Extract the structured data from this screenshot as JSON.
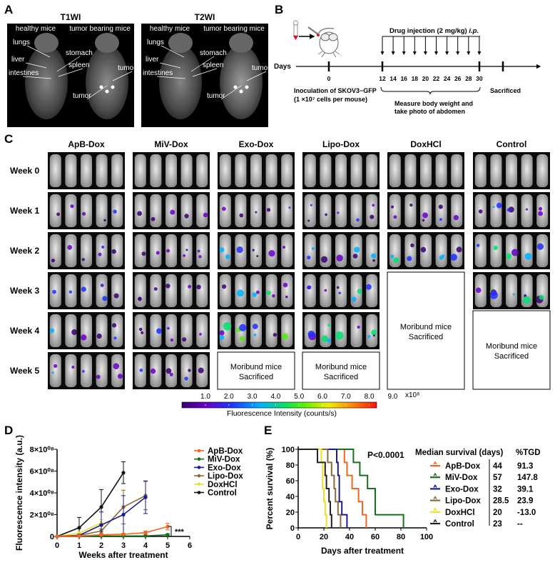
{
  "panel_labels": {
    "a": "A",
    "b": "B",
    "c": "C",
    "d": "D",
    "e": "E"
  },
  "panel_a": {
    "titles": [
      "T1WI",
      "T2WI"
    ],
    "healthy": "healthy mice",
    "tumor_bearing": "tumor bearing mice",
    "organs": {
      "lungs": "lungs",
      "liver": "liver",
      "intestines": "intestines",
      "stomach": "stomach",
      "spleen": "spleen",
      "tumor": "tumor"
    }
  },
  "panel_b": {
    "days_label": "Days",
    "drug_injection": "Drug  injection (2 mg/kg) ",
    "route": "i.p.",
    "ticks": [
      "0",
      "12",
      "14",
      "16",
      "18",
      "20",
      "22",
      "24",
      "26",
      "28",
      "30"
    ],
    "inoculation": [
      "Inoculation of  SKOV3−GFP",
      "(1 ×10⁷ cells per mouse)"
    ],
    "measure": [
      "Measure body weight and",
      "take photo of abdomen"
    ],
    "sacrificed": "Sacrificed"
  },
  "panel_c": {
    "groups": [
      "ApB-Dox",
      "MiV-Dox",
      "Exo-Dox",
      "Lipo-Dox",
      "DoxHCl",
      "Control"
    ],
    "weeks": [
      "Week 0",
      "Week 1",
      "Week 2",
      "Week 3",
      "Week 4",
      "Week 5"
    ],
    "moribund": [
      "Moribund mice",
      "Sacrificed"
    ],
    "colorbar": {
      "ticks": [
        "1.0",
        "2.0",
        "3.0",
        "4.0",
        "5.0",
        "6.0",
        "7.0",
        "8.0",
        "9.0"
      ],
      "unit": "x10⁸",
      "label": "Fluorescence Intensity (counts/s)",
      "colors": [
        "#3a0070",
        "#6a00c8",
        "#2030ff",
        "#00b0ff",
        "#00e070",
        "#50f000",
        "#f0f000",
        "#ff8000",
        "#ff1010"
      ]
    }
  },
  "chart_data": [
    {
      "type": "line",
      "xlabel": "Weeks after treatment",
      "ylabel": "Fluorescence intensity (a.u.)",
      "xlim": [
        0,
        6
      ],
      "ylim": [
        0,
        800000000
      ],
      "x_ticks": [
        "0",
        "1",
        "2",
        "3",
        "4",
        "5",
        "6"
      ],
      "y_ticks": [
        "0",
        "2×10⁰⁸",
        "4×10⁰⁸",
        "6×10⁰⁸",
        "8×10⁰⁸"
      ],
      "legend": "right",
      "annotation": "***",
      "series": [
        {
          "name": "ApB-Dox",
          "color": "#f26522",
          "x": [
            0,
            1,
            2,
            3,
            4,
            5
          ],
          "y": [
            0,
            5000000,
            15000000,
            20000000,
            35000000,
            90000000
          ],
          "error": [
            0,
            3000000,
            5000000,
            8000000,
            15000000,
            30000000
          ]
        },
        {
          "name": "MiV-Dox",
          "color": "#16701e",
          "x": [
            0,
            1,
            2,
            3,
            4,
            5
          ],
          "y": [
            0,
            2000000,
            5000000,
            5000000,
            5000000,
            15000000
          ],
          "error": [
            0,
            1000000,
            2000000,
            2000000,
            3000000,
            10000000
          ]
        },
        {
          "name": "Exo-Dox",
          "color": "#1c1c8c",
          "x": [
            0,
            1,
            2,
            3,
            4
          ],
          "y": [
            0,
            10000000,
            105000000,
            200000000,
            360000000
          ],
          "error": [
            0,
            5000000,
            120000000,
            175000000,
            150000000
          ]
        },
        {
          "name": "Lipo-Dox",
          "color": "#8b6a3e",
          "x": [
            0,
            1,
            2,
            3,
            4
          ],
          "y": [
            0,
            10000000,
            50000000,
            270000000,
            375000000
          ],
          "error": [
            0,
            5000000,
            20000000,
            155000000,
            130000000
          ]
        },
        {
          "name": "DoxHCl",
          "color": "#e8e040",
          "x": [
            0,
            1,
            2
          ],
          "y": [
            0,
            30000000,
            125000000
          ],
          "error": [
            0,
            10000000,
            30000000
          ]
        },
        {
          "name": "Control",
          "color": "#111111",
          "x": [
            0,
            1,
            2,
            3
          ],
          "y": [
            0,
            80000000,
            270000000,
            585000000
          ],
          "error": [
            0,
            95000000,
            160000000,
            100000000
          ]
        }
      ]
    },
    {
      "type": "line",
      "subtype": "kaplan-meier",
      "xlabel": "Days after treatment",
      "ylabel": "Percent survival (%)",
      "xlim": [
        0,
        100
      ],
      "ylim": [
        0,
        100
      ],
      "x_ticks": [
        "0",
        "20",
        "40",
        "60",
        "80",
        "100"
      ],
      "y_ticks": [
        "0",
        "20",
        "40",
        "60",
        "80",
        "100"
      ],
      "p_value": "P<0.0001",
      "table_headers": [
        "Median survival (days)",
        "%TGD"
      ],
      "series": [
        {
          "name": "ApB-Dox",
          "color": "#f26522",
          "median": "44",
          "tgd": "91.3",
          "steps": [
            [
              0,
              100
            ],
            [
              36,
              83.3
            ],
            [
              38,
              66.7
            ],
            [
              42,
              50
            ],
            [
              47,
              33.3
            ],
            [
              50,
              16.7
            ],
            [
              53,
              0
            ]
          ]
        },
        {
          "name": "MiV-Dox",
          "color": "#16701e",
          "median": "57",
          "tgd": "147.8",
          "steps": [
            [
              0,
              100
            ],
            [
              43,
              83.3
            ],
            [
              48,
              66.7
            ],
            [
              54,
              50
            ],
            [
              60,
              16.7
            ],
            [
              82,
              0
            ]
          ]
        },
        {
          "name": "Exo-Dox",
          "color": "#1c1c8c",
          "median": "32",
          "tgd": "39.1",
          "steps": [
            [
              0,
              100
            ],
            [
              30,
              83.3
            ],
            [
              31,
              66.7
            ],
            [
              32,
              33.3
            ],
            [
              34,
              16.7
            ],
            [
              38,
              0
            ]
          ]
        },
        {
          "name": "Lipo-Dox",
          "color": "#8b6a3e",
          "median": "28.5",
          "tgd": "23.9",
          "steps": [
            [
              0,
              100
            ],
            [
              23,
              83.3
            ],
            [
              26,
              66.7
            ],
            [
              28,
              50
            ],
            [
              29,
              33.3
            ],
            [
              31,
              16.7
            ],
            [
              33,
              0
            ]
          ]
        },
        {
          "name": "DoxHCl",
          "color": "#f0e020",
          "median": "20",
          "tgd": "-13.0",
          "steps": [
            [
              0,
              100
            ],
            [
              18,
              83.3
            ],
            [
              19,
              50
            ],
            [
              20,
              33.3
            ],
            [
              21,
              16.7
            ],
            [
              22,
              0
            ]
          ]
        },
        {
          "name": "Control",
          "color": "#222222",
          "median": "23",
          "tgd": "--",
          "steps": [
            [
              0,
              100
            ],
            [
              15,
              83.3
            ],
            [
              21,
              66.7
            ],
            [
              22,
              50
            ],
            [
              24,
              33.3
            ],
            [
              25,
              16.7
            ],
            [
              26,
              0
            ]
          ]
        }
      ]
    }
  ]
}
